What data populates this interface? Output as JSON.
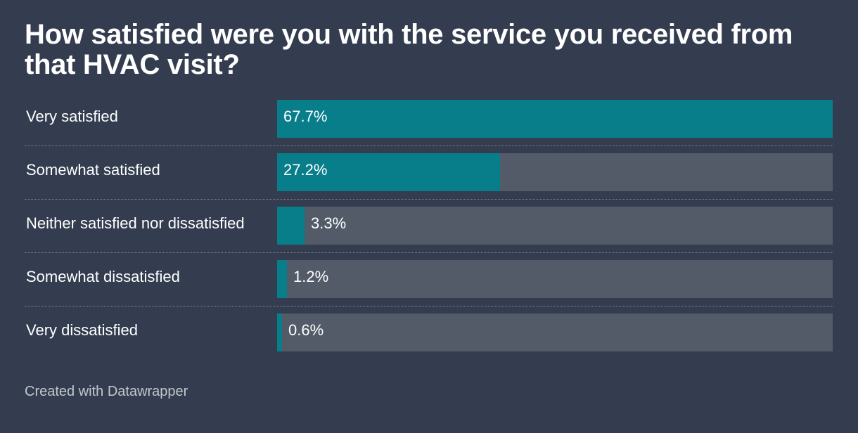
{
  "title": "How satisfied were you with the service you received from that HVAC visit?",
  "footer": "Created with Datawrapper",
  "colors": {
    "background": "#333d4f",
    "bar_fill": "#087e8b",
    "bar_track": "#535b69"
  },
  "chart_data": {
    "type": "bar",
    "orientation": "horizontal",
    "title": "How satisfied were you with the service you received from that HVAC visit?",
    "categories": [
      "Very satisfied",
      "Somewhat satisfied",
      "Neither satisfied nor dissatisfied",
      "Somewhat dissatisfied",
      "Very dissatisfied"
    ],
    "values": [
      67.7,
      27.2,
      3.3,
      1.2,
      0.6
    ],
    "value_labels": [
      "67.7%",
      "27.2%",
      "3.3%",
      "1.2%",
      "0.6%"
    ],
    "xlim": [
      0,
      67.7
    ],
    "unit": "%",
    "grid": false,
    "legend": "none"
  }
}
